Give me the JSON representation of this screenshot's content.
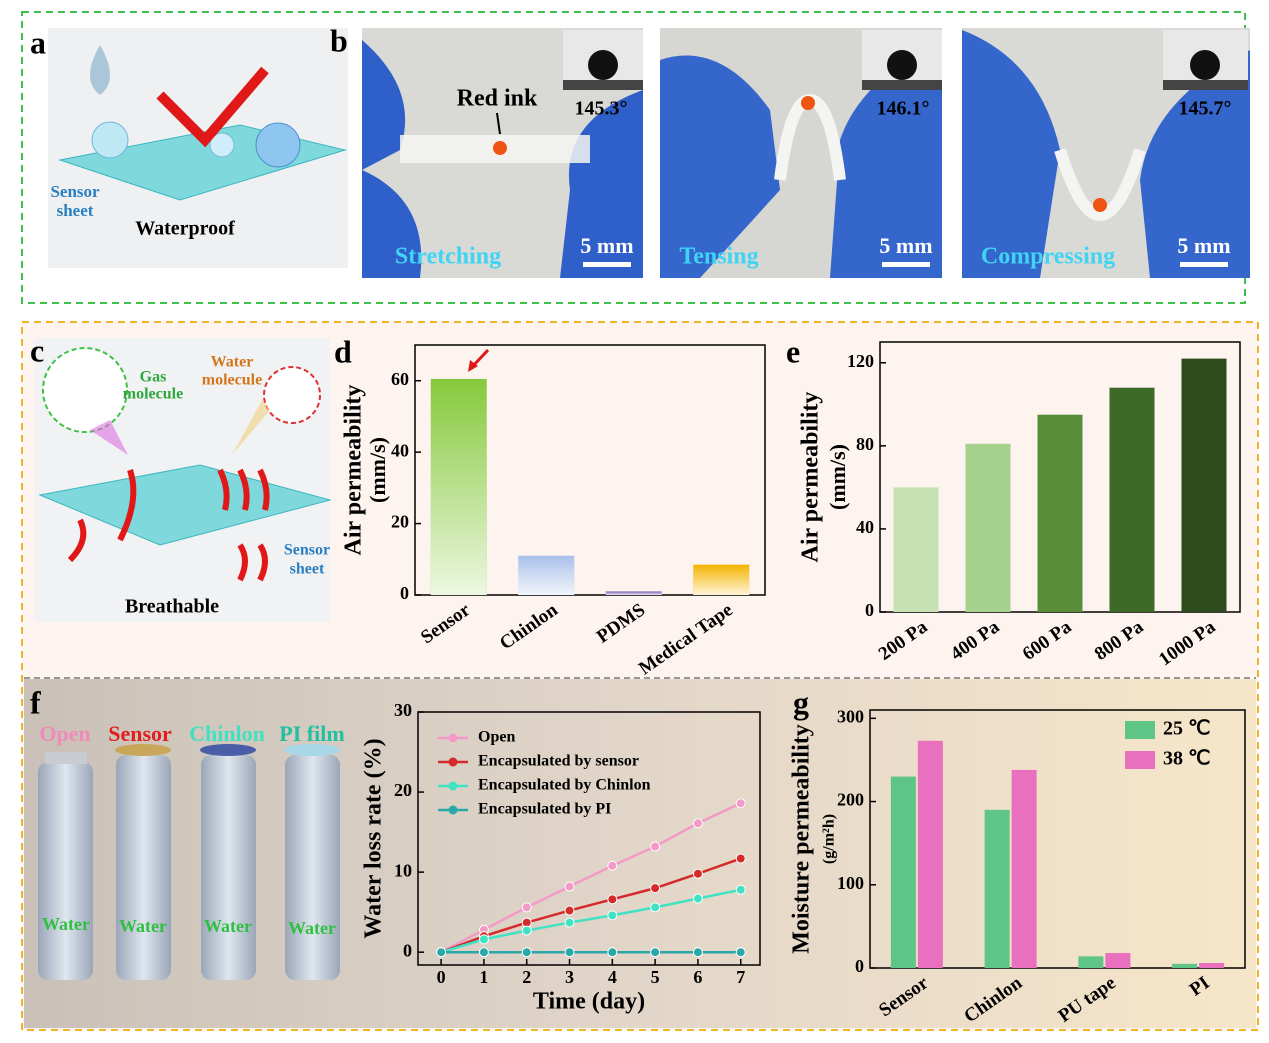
{
  "panels": {
    "a": {
      "label": "a",
      "sensor_sheet": [
        "Sensor",
        "sheet"
      ],
      "caption": "Waterproof"
    },
    "b": {
      "label": "b",
      "red_ink": "Red ink",
      "photos": [
        {
          "angle": "145.3°",
          "mode": "Stretching",
          "scale": "5 mm"
        },
        {
          "angle": "146.1°",
          "mode": "Tensing",
          "scale": "5 mm"
        },
        {
          "angle": "145.7°",
          "mode": "Compressing",
          "scale": "5 mm"
        }
      ]
    },
    "c": {
      "label": "c",
      "gas": [
        "Gas",
        "molecule"
      ],
      "water": [
        "Water",
        "molecule"
      ],
      "sensor_sheet": [
        "Sensor",
        "sheet"
      ],
      "caption": "Breathable"
    },
    "d": {
      "label": "d"
    },
    "e": {
      "label": "e"
    },
    "f": {
      "label": "f",
      "bottles": [
        {
          "name": "Open",
          "content": "Water"
        },
        {
          "name": "Sensor",
          "content": "Water"
        },
        {
          "name": "Chinlon",
          "content": "Water"
        },
        {
          "name": "PI film",
          "content": "Water"
        }
      ]
    },
    "g": {
      "label": "g"
    }
  },
  "chart_data": [
    {
      "type": "bar",
      "ylabel": "Air permeability",
      "ylabel_unit": "(mm/s)",
      "categories": [
        "Sensor",
        "Chinlon",
        "PDMS",
        "Medical Tape"
      ],
      "values": [
        60.5,
        11,
        1,
        8.5
      ],
      "colors": [
        "#86c93c",
        "#a9c0ea",
        "#7a5fb0",
        "#f5b400"
      ],
      "ylim": [
        0,
        70
      ],
      "yticks": [
        0,
        20,
        40,
        60
      ]
    },
    {
      "type": "bar",
      "ylabel": "Air permeability",
      "ylabel_unit": "(mm/s)",
      "categories": [
        "200 Pa",
        "400 Pa",
        "600 Pa",
        "800 Pa",
        "1000 Pa"
      ],
      "values": [
        60,
        81,
        95,
        108,
        122
      ],
      "colors": [
        "#c6e2b2",
        "#a6d18c",
        "#5a8d3a",
        "#3e6a28",
        "#2d4b1d"
      ],
      "ylim": [
        0,
        130
      ],
      "yticks": [
        0,
        40,
        80,
        120
      ]
    },
    {
      "type": "line",
      "xlabel": "Time (day)",
      "ylabel": "Water loss rate (%)",
      "x": [
        0,
        1,
        2,
        3,
        4,
        5,
        6,
        7
      ],
      "series": [
        {
          "name": "Open",
          "color": "#f49ac8",
          "values": [
            0,
            2.8,
            5.6,
            8.2,
            10.8,
            13.2,
            16.1,
            18.6
          ]
        },
        {
          "name": "Encapsulated by sensor",
          "color": "#d42a2a",
          "values": [
            0,
            2.0,
            3.7,
            5.2,
            6.6,
            8.0,
            9.8,
            11.7
          ]
        },
        {
          "name": "Encapsulated by Chinlon",
          "color": "#3fe3c3",
          "values": [
            0,
            1.6,
            2.7,
            3.7,
            4.6,
            5.6,
            6.7,
            7.8
          ]
        },
        {
          "name": "Encapsulated by PI",
          "color": "#2aa8a8",
          "values": [
            0,
            0,
            0,
            0,
            0,
            0,
            0,
            0
          ]
        }
      ],
      "xlim": [
        -0.54,
        7.45
      ],
      "xticks": [
        0,
        1,
        2,
        3,
        4,
        5,
        6,
        7
      ],
      "ylim": [
        -1.6,
        30
      ],
      "yticks": [
        0,
        10,
        20,
        30
      ]
    },
    {
      "type": "bar",
      "ylabel": "Moisture permeability",
      "ylabel_unit": "(g/m²h)",
      "categories": [
        "Sensor",
        "Chinlon",
        "PU tape",
        "PI"
      ],
      "series": [
        {
          "name": "25 ℃",
          "color": "#5fc587",
          "values": [
            230,
            190,
            14,
            5
          ]
        },
        {
          "name": "38 ℃",
          "color": "#e96fbf",
          "values": [
            273,
            238,
            18,
            6
          ]
        }
      ],
      "ylim": [
        0,
        310
      ],
      "yticks": [
        0,
        100,
        200,
        300
      ],
      "legend": "upper right"
    }
  ]
}
